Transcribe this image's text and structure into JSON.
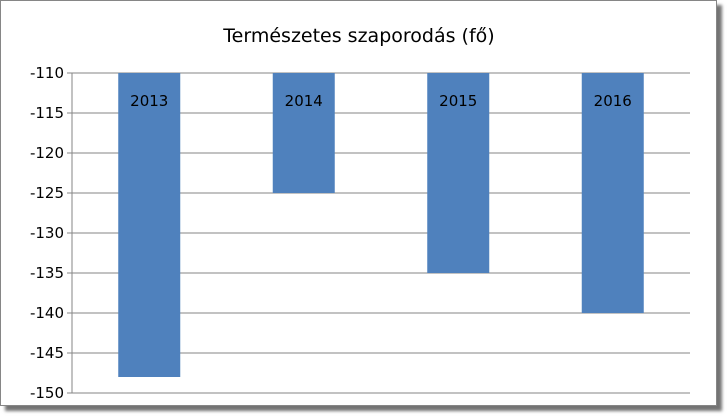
{
  "chart_data": {
    "type": "bar",
    "title": "Természetes szaporodás (fő)",
    "categories": [
      "2013",
      "2014",
      "2015",
      "2016"
    ],
    "values": [
      -148,
      -125,
      -135,
      -140
    ],
    "ylim": [
      -150,
      -110
    ],
    "yticks": [
      "-110",
      "-115",
      "-120",
      "-125",
      "-130",
      "-135",
      "-140",
      "-145",
      "-150"
    ],
    "ytick_values": [
      -110,
      -115,
      -120,
      -125,
      -130,
      -135,
      -140,
      -145,
      -150
    ],
    "grid": true,
    "bar_color": "#4f81bd",
    "grid_color": "#868686",
    "data_labels": "category-name"
  }
}
